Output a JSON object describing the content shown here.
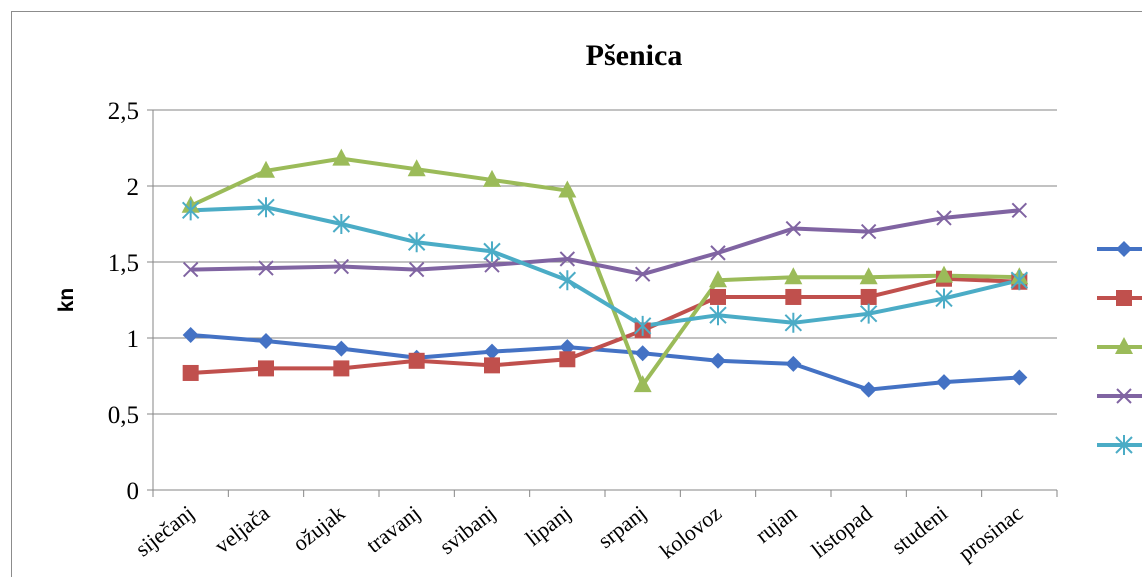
{
  "chart_data": {
    "type": "line",
    "title": "Pšenica",
    "xlabel": "",
    "ylabel": "kn",
    "ylim": [
      0,
      2.5
    ],
    "yticks": [
      "0",
      "0,5",
      "1",
      "1,5",
      "2",
      "2,5"
    ],
    "grid": true,
    "legend_position": "right",
    "categories": [
      "siječanj",
      "veljača",
      "ožujak",
      "travanj",
      "svibanj",
      "lipanj",
      "srpanj",
      "kolovoz",
      "rujan",
      "listopad",
      "studeni",
      "prosinac"
    ],
    "series": [
      {
        "color": "#4472C4",
        "marker": "diamond",
        "values": [
          1.02,
          0.98,
          0.93,
          0.87,
          0.91,
          0.94,
          0.9,
          0.85,
          0.83,
          0.66,
          0.71,
          0.74
        ]
      },
      {
        "color": "#C0504D",
        "marker": "square",
        "values": [
          0.77,
          0.8,
          0.8,
          0.85,
          0.82,
          0.86,
          1.05,
          1.27,
          1.27,
          1.27,
          1.39,
          1.37
        ]
      },
      {
        "color": "#9BBB59",
        "marker": "triangle",
        "values": [
          1.87,
          2.1,
          2.18,
          2.11,
          2.04,
          1.97,
          0.69,
          1.38,
          1.4,
          1.4,
          1.41,
          1.4
        ]
      },
      {
        "color": "#8064A2",
        "marker": "x",
        "values": [
          1.45,
          1.46,
          1.47,
          1.45,
          1.48,
          1.52,
          1.42,
          1.56,
          1.72,
          1.7,
          1.79,
          1.84
        ]
      },
      {
        "color": "#4BACC6",
        "marker": "star",
        "values": [
          1.84,
          1.86,
          1.75,
          1.63,
          1.57,
          1.38,
          1.08,
          1.15,
          1.1,
          1.16,
          1.26,
          1.38
        ]
      }
    ]
  }
}
